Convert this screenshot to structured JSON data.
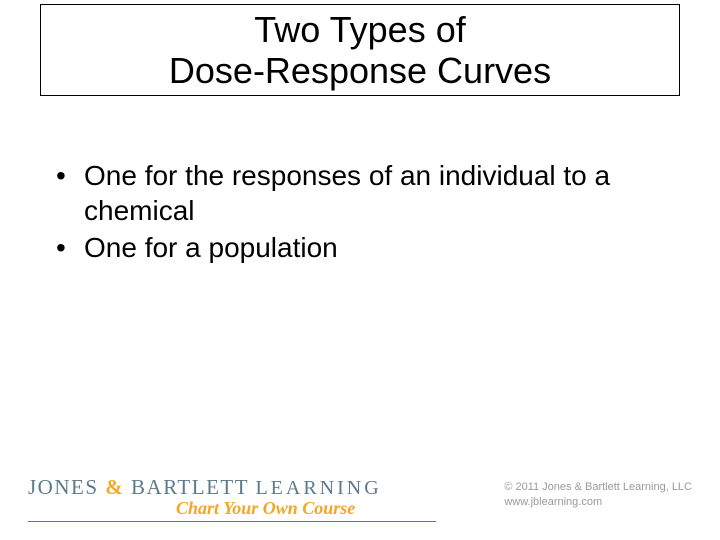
{
  "title": {
    "line1": "Two Types of",
    "line2": "Dose-Response Curves"
  },
  "bullets": [
    "One for the responses of an individual to a chemical",
    "One for a population"
  ],
  "footer": {
    "brand_prefix": "JONES ",
    "brand_amp": "&",
    "brand_mid": " BARTLETT ",
    "brand_learning": "LEARNING",
    "tagline": "Chart Your Own Course",
    "copyright_line1": "© 2011 Jones & Bartlett Learning, LLC",
    "copyright_line2": "www.jblearning.com"
  },
  "colors": {
    "text": "#000000",
    "brand_blue": "#5b7a8c",
    "brand_orange": "#f5a623",
    "copyright_gray": "#9a9a9a",
    "background": "#ffffff",
    "border": "#000000"
  },
  "typography": {
    "title_fontsize": 36,
    "bullet_fontsize": 28,
    "brand_fontsize": 21,
    "tagline_fontsize": 18,
    "copyright_fontsize": 11
  }
}
